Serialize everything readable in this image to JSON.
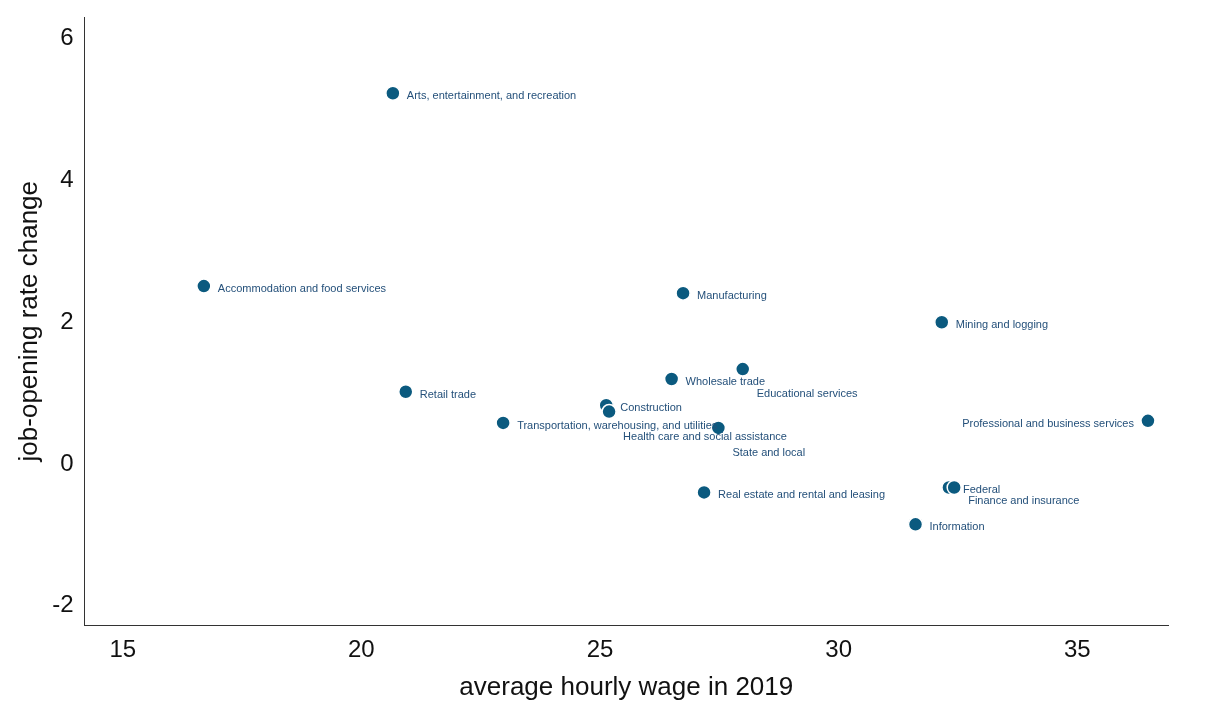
{
  "chart_data": {
    "type": "scatter",
    "xlabel": "average hourly wage in 2019",
    "ylabel": "job-opening rate change",
    "x": [
      20.66,
      16.7,
      20.93,
      22.97,
      25.13,
      25.19,
      26.5,
      26.74,
      27.99,
      27.48,
      27.18,
      32.16,
      32.31,
      32.42,
      31.61,
      36.48
    ],
    "values": [
      5.23,
      2.51,
      1.02,
      0.58,
      0.83,
      0.74,
      1.2,
      2.41,
      1.34,
      0.51,
      -0.4,
      2.0,
      -0.33,
      -0.33,
      -0.85,
      0.61
    ],
    "color": "#0b5a7f",
    "marker": "circle",
    "grid": false,
    "legend": false,
    "xlim": [
      14.2,
      36.9
    ],
    "xticks": [
      15,
      20,
      25,
      30,
      35
    ],
    "ylim": [
      -2.27,
      6.3
    ],
    "yticks": [
      -2,
      0,
      2,
      4,
      6
    ],
    "annotations": [
      {
        "text": "Arts, entertainment, and recreation",
        "x": 20.66,
        "y": 5.23
      },
      {
        "text": "Accommodation and food services",
        "x": 16.7,
        "y": 2.51
      },
      {
        "text": "Retail trade",
        "x": 20.93,
        "y": 1.02
      },
      {
        "text": "Transportation, warehousing, and utilities",
        "x": 22.97,
        "y": 0.58
      },
      {
        "text": "Construction",
        "x": 25.13,
        "y": 0.83
      },
      {
        "text": "Health care and social assistance",
        "x": 25.19,
        "y": 0.74
      },
      {
        "text": "Wholesale trade",
        "x": 26.5,
        "y": 1.2
      },
      {
        "text": "Manufacturing",
        "x": 26.74,
        "y": 2.41
      },
      {
        "text": "Educational services",
        "x": 27.99,
        "y": 1.34
      },
      {
        "text": "State and local",
        "x": 27.48,
        "y": 0.51
      },
      {
        "text": "Real estate and rental and leasing",
        "x": 27.18,
        "y": -0.4
      },
      {
        "text": "Mining and logging",
        "x": 32.16,
        "y": 2.0
      },
      {
        "text": "Federal",
        "x": 32.31,
        "y": -0.33
      },
      {
        "text": "Finance and insurance",
        "x": 32.42,
        "y": -0.33
      },
      {
        "text": "Information",
        "x": 31.61,
        "y": -0.85
      },
      {
        "text": "Professional and business services",
        "x": 36.48,
        "y": 0.61
      }
    ]
  }
}
